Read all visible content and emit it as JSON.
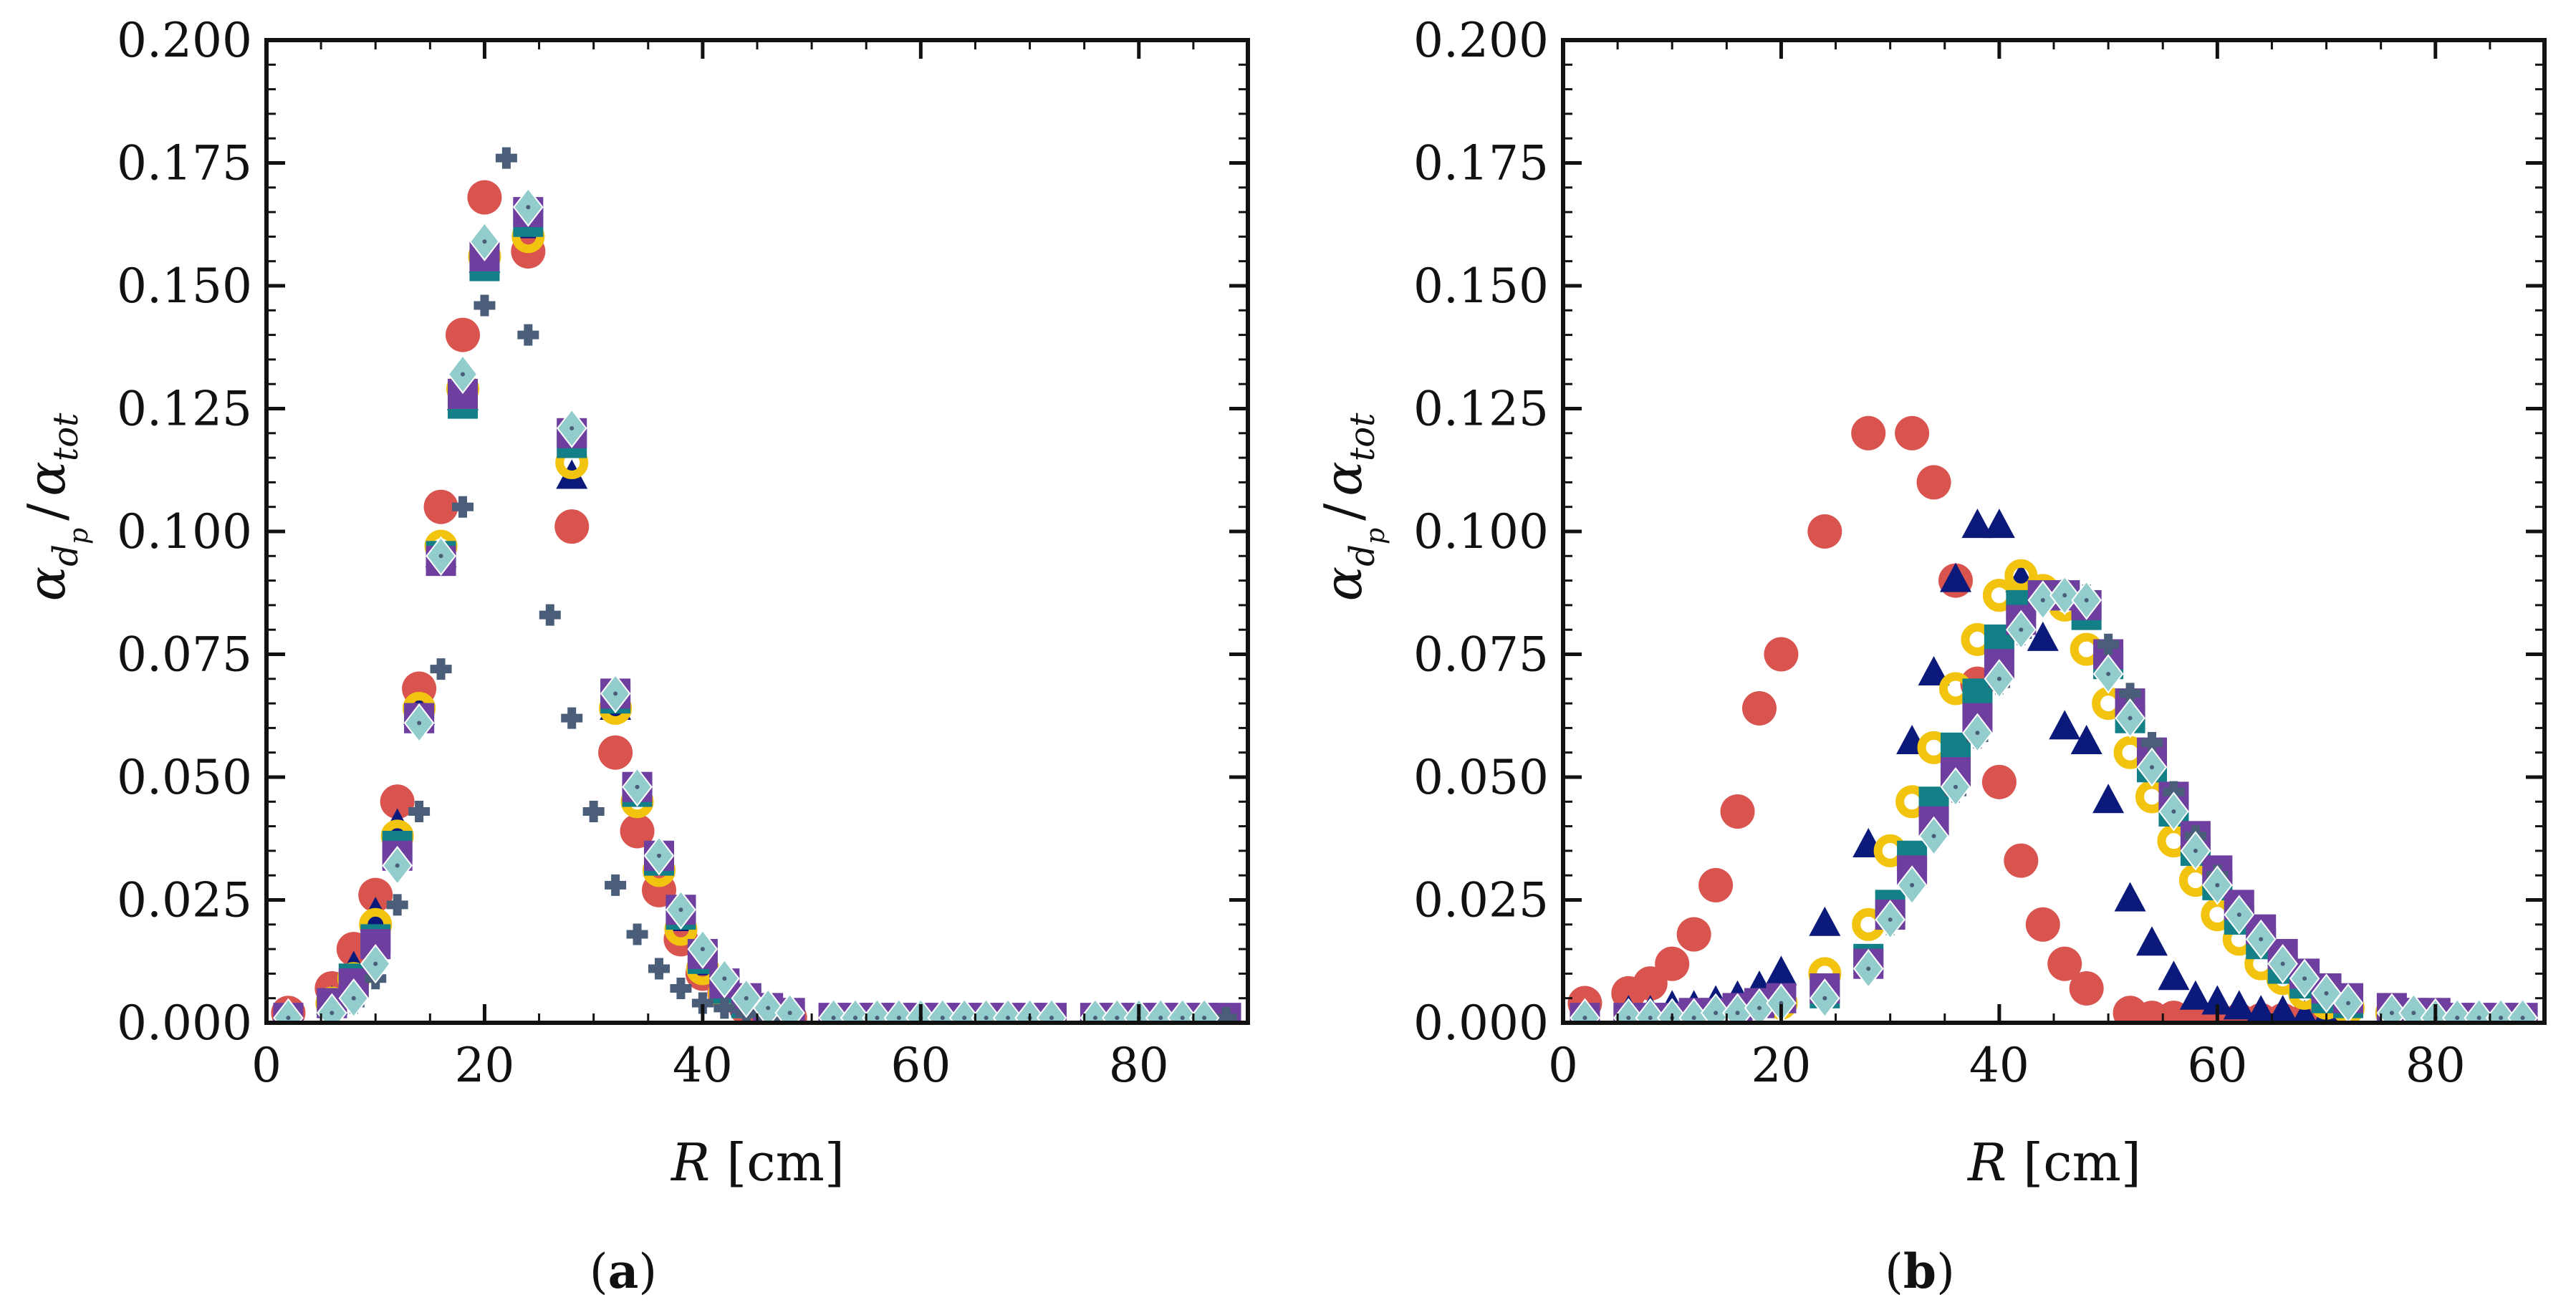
{
  "figure": {
    "panels": [
      {
        "id": "a",
        "label_open": "(",
        "label_letter": "a",
        "label_close": ")"
      },
      {
        "id": "b",
        "label_open": "(",
        "label_letter": "b",
        "label_close": ")"
      }
    ]
  },
  "chart_data": [
    {
      "type": "scatter",
      "panel": "a",
      "title": "",
      "xlabel_var": "R",
      "xlabel_unit": " [cm]",
      "ylabel": "α_dp / α_tot",
      "ylabel_parts": {
        "num": "α",
        "num_sub": "d",
        "num_subsub": "p",
        "slash": "/",
        "den": "α",
        "den_sub": "tot"
      },
      "xlim": [
        0,
        90
      ],
      "ylim": [
        0,
        0.2
      ],
      "xticks": [
        0,
        20,
        40,
        60,
        80
      ],
      "xtick_labels": [
        "0",
        "20",
        "40",
        "60",
        "80"
      ],
      "yticks": [
        0,
        0.025,
        0.05,
        0.075,
        0.1,
        0.125,
        0.15,
        0.175,
        0.2
      ],
      "ytick_labels": [
        "0.000",
        "0.025",
        "0.050",
        "0.075",
        "0.100",
        "0.125",
        "0.150",
        "0.175",
        "0.200"
      ],
      "series": [
        {
          "name": "series-1",
          "marker": "circle",
          "color": "#d9534f",
          "x": [
            2,
            6,
            8,
            10,
            12,
            14,
            16,
            18,
            20,
            24,
            28,
            32,
            34,
            36,
            38,
            40,
            42,
            44,
            46,
            48
          ],
          "y": [
            0.002,
            0.007,
            0.015,
            0.026,
            0.045,
            0.068,
            0.105,
            0.14,
            0.168,
            0.157,
            0.101,
            0.055,
            0.039,
            0.027,
            0.017,
            0.01,
            0.006,
            0.003,
            0.002,
            0.001
          ]
        },
        {
          "name": "series-2",
          "marker": "triangle",
          "color": "#0b1a7a",
          "x": [
            6,
            8,
            10,
            12,
            14,
            16,
            18,
            20,
            24,
            28,
            32,
            34,
            36,
            38,
            40,
            42,
            44
          ],
          "y": [
            0.004,
            0.011,
            0.022,
            0.04,
            0.063,
            0.095,
            0.127,
            0.155,
            0.162,
            0.111,
            0.064,
            0.048,
            0.033,
            0.021,
            0.012,
            0.007,
            0.004
          ]
        },
        {
          "name": "series-3",
          "marker": "ring",
          "color": "#f2c40f",
          "x": [
            6,
            8,
            10,
            12,
            14,
            16,
            18,
            20,
            24,
            28,
            32,
            34,
            36,
            38,
            40,
            42
          ],
          "y": [
            0.004,
            0.009,
            0.02,
            0.038,
            0.064,
            0.097,
            0.129,
            0.156,
            0.16,
            0.114,
            0.064,
            0.045,
            0.031,
            0.019,
            0.011,
            0.006
          ]
        },
        {
          "name": "series-4",
          "marker": "square",
          "color": "#137f87",
          "x": [
            6,
            8,
            10,
            12,
            14,
            16,
            18,
            20,
            24,
            28,
            32,
            34,
            36,
            38,
            40,
            42,
            44
          ],
          "y": [
            0.004,
            0.009,
            0.017,
            0.036,
            0.062,
            0.095,
            0.126,
            0.154,
            0.163,
            0.118,
            0.066,
            0.047,
            0.033,
            0.022,
            0.013,
            0.007,
            0.004
          ]
        },
        {
          "name": "series-5",
          "marker": "square",
          "color": "#6f3fa0",
          "x": [
            2,
            6,
            8,
            10,
            12,
            14,
            16,
            18,
            20,
            24,
            28,
            32,
            34,
            36,
            38,
            40,
            42,
            44,
            46,
            48,
            52,
            54,
            56,
            58,
            60,
            62,
            64,
            66,
            68,
            70,
            72,
            76,
            78,
            80,
            82,
            84,
            86,
            88
          ],
          "y": [
            0.001,
            0.004,
            0.008,
            0.016,
            0.034,
            0.062,
            0.094,
            0.128,
            0.156,
            0.165,
            0.12,
            0.067,
            0.048,
            0.034,
            0.023,
            0.014,
            0.008,
            0.005,
            0.003,
            0.002,
            0.001,
            0.001,
            0.001,
            0.001,
            0.001,
            0.001,
            0.001,
            0.001,
            0.001,
            0.001,
            0.001,
            0.001,
            0.001,
            0.001,
            0.001,
            0.001,
            0.001,
            0.001
          ]
        },
        {
          "name": "series-6",
          "marker": "plus",
          "color": "#4a5e7a",
          "x": [
            8,
            10,
            12,
            14,
            16,
            18,
            20,
            22,
            24,
            26,
            28,
            30,
            32,
            34,
            36,
            38,
            40,
            42,
            44,
            46,
            48,
            52,
            56,
            60,
            64,
            68,
            72,
            76,
            80,
            84,
            88
          ],
          "y": [
            0.004,
            0.009,
            0.024,
            0.043,
            0.072,
            0.105,
            0.146,
            0.176,
            0.14,
            0.083,
            0.062,
            0.043,
            0.028,
            0.018,
            0.011,
            0.007,
            0.004,
            0.003,
            0.002,
            0.001,
            0.001,
            0.001,
            0.001,
            0.001,
            0.001,
            0.001,
            0.001,
            0.001,
            0.001,
            0.001,
            0.001
          ]
        },
        {
          "name": "series-7",
          "marker": "diamond",
          "color": "#92cccc",
          "x": [
            2,
            6,
            8,
            10,
            12,
            14,
            16,
            18,
            20,
            24,
            28,
            32,
            34,
            36,
            38,
            40,
            42,
            44,
            46,
            48,
            52,
            54,
            56,
            58,
            60,
            62,
            64,
            66,
            68,
            70,
            72,
            76,
            78,
            80,
            82,
            84,
            86
          ],
          "y": [
            0.001,
            0.002,
            0.005,
            0.012,
            0.032,
            0.061,
            0.095,
            0.132,
            0.159,
            0.166,
            0.121,
            0.067,
            0.048,
            0.034,
            0.023,
            0.015,
            0.009,
            0.005,
            0.003,
            0.002,
            0.001,
            0.001,
            0.001,
            0.001,
            0.001,
            0.001,
            0.001,
            0.001,
            0.001,
            0.001,
            0.001,
            0.001,
            0.001,
            0.001,
            0.001,
            0.001,
            0.001
          ]
        }
      ]
    },
    {
      "type": "scatter",
      "panel": "b",
      "title": "",
      "xlabel_var": "R",
      "xlabel_unit": " [cm]",
      "ylabel": "α_dp / α_tot",
      "ylabel_parts": {
        "num": "α",
        "num_sub": "d",
        "num_subsub": "p",
        "slash": "/",
        "den": "α",
        "den_sub": "tot"
      },
      "xlim": [
        0,
        90
      ],
      "ylim": [
        0,
        0.2
      ],
      "xticks": [
        0,
        20,
        40,
        60,
        80
      ],
      "xtick_labels": [
        "0",
        "20",
        "40",
        "60",
        "80"
      ],
      "yticks": [
        0,
        0.025,
        0.05,
        0.075,
        0.1,
        0.125,
        0.15,
        0.175,
        0.2
      ],
      "ytick_labels": [
        "0.000",
        "0.025",
        "0.050",
        "0.075",
        "0.100",
        "0.125",
        "0.150",
        "0.175",
        "0.200"
      ],
      "series": [
        {
          "name": "series-1",
          "marker": "circle",
          "color": "#d9534f",
          "x": [
            2,
            6,
            8,
            10,
            12,
            14,
            16,
            18,
            20,
            24,
            28,
            32,
            34,
            36,
            38,
            40,
            42,
            44,
            46,
            48,
            52,
            54,
            56,
            58,
            60,
            62,
            64,
            66,
            68
          ],
          "y": [
            0.004,
            0.006,
            0.008,
            0.012,
            0.018,
            0.028,
            0.043,
            0.064,
            0.075,
            0.1,
            0.12,
            0.12,
            0.11,
            0.09,
            0.069,
            0.049,
            0.033,
            0.02,
            0.012,
            0.007,
            0.002,
            0.001,
            0.001,
            0.001,
            0.0005,
            0.0005,
            0.0005,
            0.0005,
            0.0005
          ]
        },
        {
          "name": "series-2",
          "marker": "triangle",
          "color": "#0b1a7a",
          "x": [
            6,
            8,
            10,
            12,
            14,
            16,
            18,
            20,
            24,
            28,
            32,
            34,
            36,
            38,
            40,
            42,
            44,
            46,
            48,
            50,
            52,
            54,
            56,
            58,
            60,
            62,
            64,
            66,
            68,
            70,
            72
          ],
          "y": [
            0.002,
            0.002,
            0.003,
            0.003,
            0.004,
            0.005,
            0.007,
            0.01,
            0.02,
            0.036,
            0.057,
            0.071,
            0.09,
            0.101,
            0.101,
            0.09,
            0.078,
            0.06,
            0.057,
            0.045,
            0.025,
            0.016,
            0.009,
            0.005,
            0.004,
            0.003,
            0.002,
            0.002,
            0.001,
            0.001,
            0.001
          ]
        },
        {
          "name": "series-3",
          "marker": "ring",
          "color": "#f2c40f",
          "x": [
            20,
            24,
            28,
            30,
            32,
            34,
            36,
            38,
            40,
            42,
            44,
            46,
            48,
            50,
            52,
            54,
            56,
            58,
            60,
            62,
            64,
            66,
            68,
            70,
            72,
            76,
            78
          ],
          "y": [
            0.004,
            0.01,
            0.02,
            0.035,
            0.045,
            0.056,
            0.068,
            0.078,
            0.087,
            0.091,
            0.088,
            0.085,
            0.076,
            0.065,
            0.055,
            0.046,
            0.037,
            0.029,
            0.022,
            0.017,
            0.012,
            0.009,
            0.006,
            0.004,
            0.003,
            0.002,
            0.001
          ]
        },
        {
          "name": "series-4",
          "marker": "square",
          "color": "#137f87",
          "x": [
            24,
            28,
            30,
            32,
            34,
            36,
            38,
            40,
            42,
            44,
            46,
            48,
            50,
            52,
            54,
            56,
            58,
            60,
            62,
            64,
            66,
            68,
            70,
            72
          ],
          "y": [
            0.006,
            0.013,
            0.024,
            0.034,
            0.045,
            0.056,
            0.067,
            0.078,
            0.085,
            0.087,
            0.087,
            0.083,
            0.073,
            0.062,
            0.052,
            0.043,
            0.035,
            0.028,
            0.021,
            0.016,
            0.011,
            0.008,
            0.005,
            0.004
          ]
        },
        {
          "name": "series-5",
          "marker": "square",
          "color": "#6f3fa0",
          "x": [
            2,
            6,
            8,
            10,
            12,
            14,
            16,
            18,
            20,
            24,
            28,
            30,
            32,
            34,
            36,
            38,
            40,
            42,
            44,
            46,
            48,
            50,
            52,
            54,
            56,
            58,
            60,
            62,
            64,
            66,
            68,
            70,
            72,
            76,
            78,
            80,
            82,
            84,
            86,
            88
          ],
          "y": [
            0.001,
            0.001,
            0.001,
            0.001,
            0.002,
            0.002,
            0.003,
            0.004,
            0.005,
            0.007,
            0.012,
            0.022,
            0.031,
            0.041,
            0.051,
            0.062,
            0.073,
            0.082,
            0.087,
            0.087,
            0.085,
            0.075,
            0.065,
            0.055,
            0.046,
            0.038,
            0.031,
            0.024,
            0.019,
            0.014,
            0.01,
            0.007,
            0.005,
            0.003,
            0.002,
            0.002,
            0.001,
            0.001,
            0.001,
            0.001
          ]
        },
        {
          "name": "series-6",
          "marker": "plus",
          "color": "#4a5e7a",
          "x": [
            30,
            32,
            34,
            36,
            38,
            40,
            42,
            44,
            46,
            48,
            50,
            52,
            54,
            56,
            58,
            60,
            62,
            64,
            66,
            68,
            70,
            72
          ],
          "y": [
            0.02,
            0.028,
            0.038,
            0.047,
            0.058,
            0.069,
            0.079,
            0.086,
            0.088,
            0.087,
            0.077,
            0.067,
            0.057,
            0.047,
            0.038,
            0.03,
            0.023,
            0.017,
            0.012,
            0.009,
            0.006,
            0.004
          ]
        },
        {
          "name": "series-7",
          "marker": "diamond",
          "color": "#92cccc",
          "x": [
            2,
            6,
            8,
            10,
            12,
            14,
            16,
            18,
            20,
            24,
            28,
            30,
            32,
            34,
            36,
            38,
            40,
            42,
            44,
            46,
            48,
            50,
            52,
            54,
            56,
            58,
            60,
            62,
            64,
            66,
            68,
            70,
            72,
            76,
            78,
            80,
            82,
            84,
            86,
            88
          ],
          "y": [
            0.001,
            0.001,
            0.001,
            0.001,
            0.001,
            0.002,
            0.002,
            0.003,
            0.004,
            0.005,
            0.011,
            0.021,
            0.028,
            0.038,
            0.048,
            0.059,
            0.07,
            0.08,
            0.086,
            0.087,
            0.086,
            0.071,
            0.062,
            0.052,
            0.043,
            0.035,
            0.028,
            0.022,
            0.017,
            0.012,
            0.009,
            0.006,
            0.004,
            0.002,
            0.002,
            0.001,
            0.001,
            0.001,
            0.001,
            0.001
          ]
        }
      ]
    }
  ]
}
